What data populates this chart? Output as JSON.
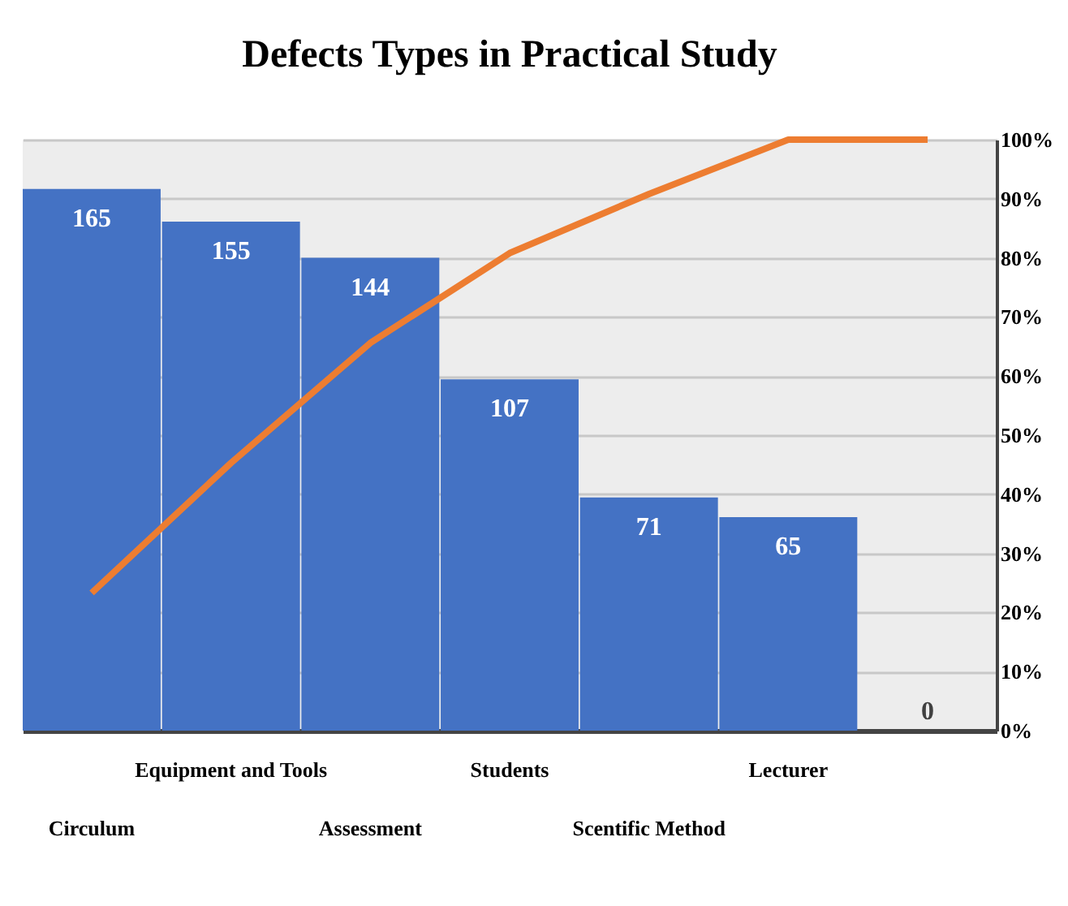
{
  "chart_data": {
    "type": "bar",
    "title": "Defects Types in Practical Study",
    "categories": [
      "Circulum",
      "Equipment and Tools",
      "Assessment",
      "Students",
      "Scentific Method",
      "Lecturer",
      null
    ],
    "series": [
      {
        "type": "bar",
        "color": "#4472c4",
        "values": [
          165,
          155,
          144,
          107,
          71,
          65,
          0
        ],
        "value_labels": [
          "165",
          "155",
          "144",
          "107",
          "71",
          "65",
          "0"
        ]
      },
      {
        "type": "line",
        "axis": "y2",
        "color": "#ed7d31",
        "values": [
          23.3,
          45.3,
          65.6,
          80.8,
          90.8,
          100,
          100
        ]
      }
    ],
    "ylim": [
      0,
      180
    ],
    "y2lim": [
      0,
      100
    ],
    "y2ticks": [
      {
        "value": 0,
        "label": "0%"
      },
      {
        "value": 10,
        "label": "10%"
      },
      {
        "value": 20,
        "label": "20%"
      },
      {
        "value": 30,
        "label": "30%"
      },
      {
        "value": 40,
        "label": "40%"
      },
      {
        "value": 50,
        "label": "50%"
      },
      {
        "value": 60,
        "label": "60%"
      },
      {
        "value": 70,
        "label": "70%"
      },
      {
        "value": 80,
        "label": "80%"
      },
      {
        "value": 90,
        "label": "90%"
      },
      {
        "value": 100,
        "label": "100%"
      }
    ],
    "grid": "y"
  }
}
